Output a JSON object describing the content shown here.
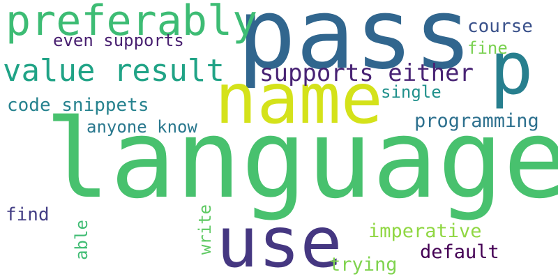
{
  "words": {
    "language": "language",
    "pass": "pass",
    "name": "name",
    "use": "use",
    "preferably": "preferably",
    "value_result": "value result",
    "p": "p",
    "supports_either": "supports either",
    "code_snippets": "code snippets",
    "anyone_know": "anyone know",
    "programming": "programming",
    "even_supports": "even supports",
    "course": "course",
    "fine": "fine",
    "single": "single",
    "find": "find",
    "able": "able",
    "write": "write",
    "imperative": "imperative",
    "default": "default",
    "trying": "trying"
  },
  "colors": {
    "language": "#48c16e",
    "pass": "#31668e",
    "name": "#d4e21a",
    "use": "#453781",
    "preferably": "#3dbc74",
    "value_result": "#20a386",
    "p": "#277f8e",
    "supports_either": "#482374",
    "code_snippets": "#26828e",
    "anyone_know": "#2a788e",
    "programming": "#2d708e",
    "even_supports": "#481f70",
    "course": "#3b528b",
    "fine": "#7ad151",
    "single": "#21918c",
    "find": "#433e85",
    "able": "#3fbc73",
    "write": "#5ec962",
    "imperative": "#90d743",
    "default": "#440154",
    "trying": "#7fd34e"
  }
}
